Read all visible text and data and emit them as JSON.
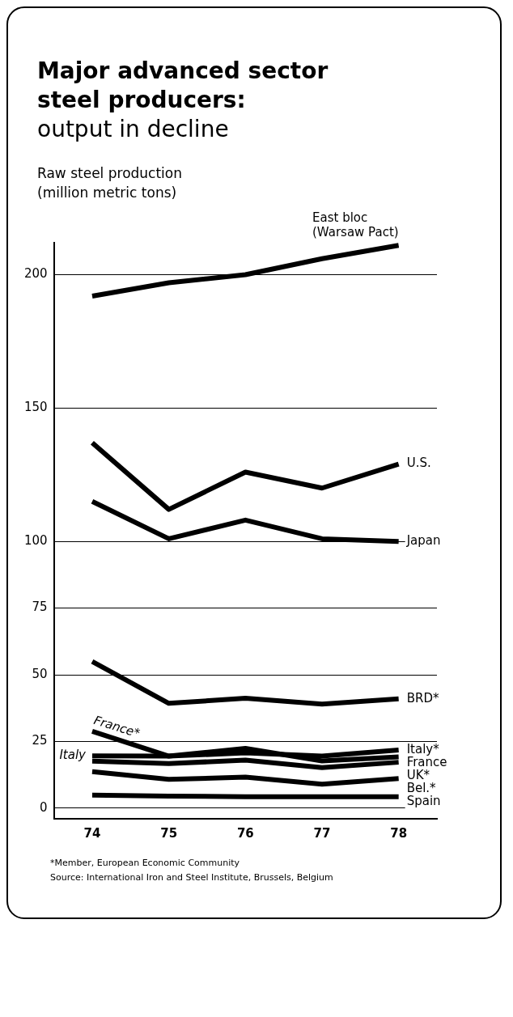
{
  "chart_data": {
    "type": "line",
    "title": "Major advanced sector steel producers:",
    "subtitle": "output in decline",
    "ylabel": "Raw steel production (million metric tons)",
    "categories": [
      "74",
      "75",
      "76",
      "77",
      "78"
    ],
    "series": [
      {
        "name": "East bloc (Warsaw Pact)",
        "color": "#000000",
        "values": [
          192,
          197,
          200,
          206,
          211
        ]
      },
      {
        "name": "U.S.",
        "color": "#000000",
        "values": [
          137,
          112,
          126,
          120,
          129
        ]
      },
      {
        "name": "Japan",
        "color": "#000000",
        "values": [
          115,
          101,
          108,
          101,
          100
        ]
      },
      {
        "name": "BRD*",
        "color": "#000000",
        "values": [
          55,
          39.3,
          41.2,
          39,
          41
        ]
      },
      {
        "name": "Italy*",
        "color": "#000000",
        "values": [
          19.6,
          19.5,
          20.7,
          19.5,
          21.8
        ]
      },
      {
        "name": "France",
        "color": "#000000",
        "values": [
          28.8,
          19.5,
          22.4,
          17.7,
          19.2
        ]
      },
      {
        "name": "UK*",
        "color": "#000000",
        "values": [
          17.6,
          16.7,
          18,
          15.2,
          17.2
        ]
      },
      {
        "name": "Bel.*",
        "color": "#000000",
        "values": [
          13.7,
          10.8,
          11.6,
          9,
          11.1
        ]
      },
      {
        "name": "Spain",
        "color": "#000000",
        "values": [
          4.9,
          4.5,
          4.3,
          4.3,
          4.3
        ]
      }
    ],
    "ylim": [
      -4,
      212
    ],
    "yticks": [
      0,
      25,
      50,
      75,
      100,
      150,
      200
    ],
    "grid": "y",
    "legend": false,
    "marker": "none",
    "line_style": "solid",
    "annotations": [
      {
        "text": "France*",
        "x": "74",
        "y": 28.8
      },
      {
        "text": "Italy",
        "x": "74",
        "y": 19.6
      },
      "*Member, European Economic Community",
      "Source: International Iron and Steel Institute, Brussels, Belgium"
    ]
  }
}
